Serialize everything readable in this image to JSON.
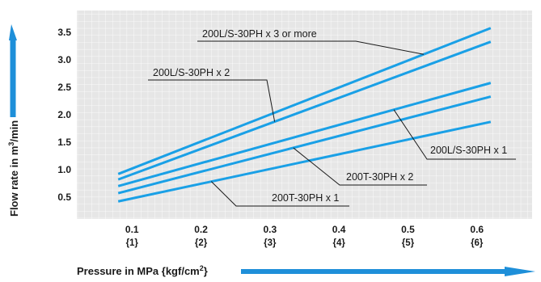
{
  "chart_data": {
    "type": "line",
    "xlabel": "Pressure in MPa {kgf/cm2}",
    "ylabel": "Flow rate in m3/min",
    "x_ticks": [
      {
        "value": 0.1,
        "label": "0.1",
        "sub": "{1}"
      },
      {
        "value": 0.2,
        "label": "0.2",
        "sub": "{2}"
      },
      {
        "value": 0.3,
        "label": "0.3",
        "sub": "{3}"
      },
      {
        "value": 0.4,
        "label": "0.4",
        "sub": "{4}"
      },
      {
        "value": 0.5,
        "label": "0.5",
        "sub": "{5}"
      },
      {
        "value": 0.6,
        "label": "0.6",
        "sub": "{6}"
      }
    ],
    "y_ticks": [
      "0.5",
      "1.0",
      "1.5",
      "2.0",
      "2.5",
      "3.0",
      "3.5"
    ],
    "xlim": [
      0.02,
      0.68
    ],
    "ylim": [
      0.1,
      3.9
    ],
    "grid": true,
    "series": [
      {
        "name": "200L/S-30PH x 3 or more",
        "x": [
          0.08,
          0.62
        ],
        "y": [
          0.92,
          3.58
        ]
      },
      {
        "name": "200L/S-30PH x 2",
        "x": [
          0.08,
          0.62
        ],
        "y": [
          0.82,
          3.33
        ]
      },
      {
        "name": "200L/S-30PH x 1",
        "x": [
          0.08,
          0.62
        ],
        "y": [
          0.7,
          2.58
        ]
      },
      {
        "name": "200T-30PH x 2",
        "x": [
          0.08,
          0.62
        ],
        "y": [
          0.57,
          2.33
        ]
      },
      {
        "name": "200T-30PH x 1",
        "x": [
          0.08,
          0.62
        ],
        "y": [
          0.42,
          1.87
        ]
      }
    ],
    "line_color": "#1aa0e6",
    "arrow_color": "#1e8fd9",
    "plot_bg": "#e6e6e6"
  }
}
